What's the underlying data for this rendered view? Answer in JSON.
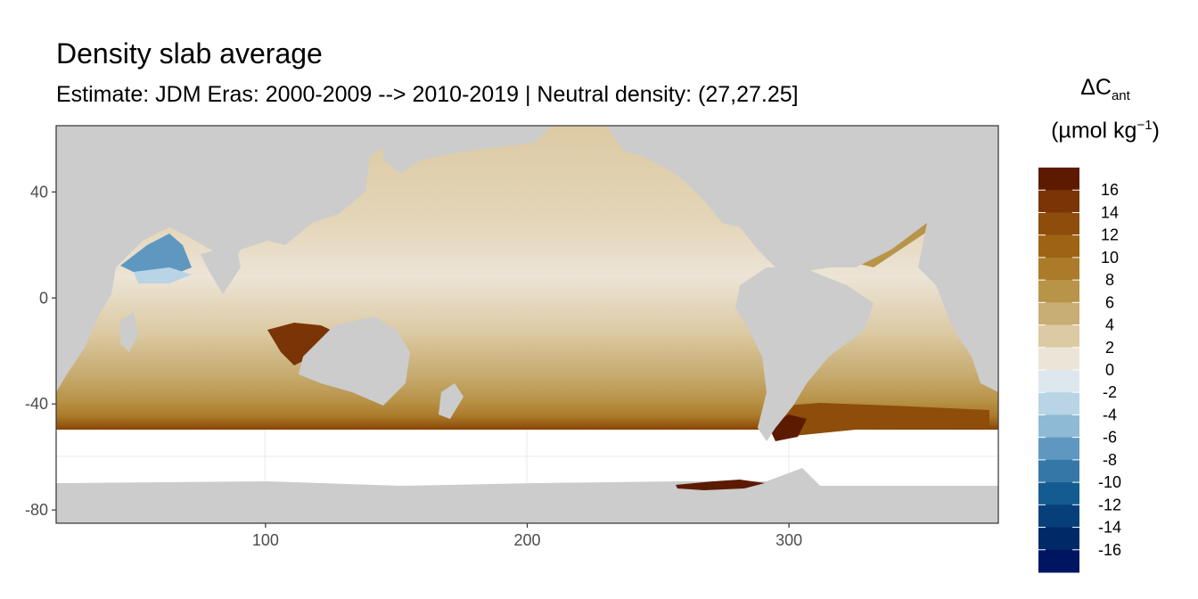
{
  "title": "Density slab average",
  "subtitle": "Estimate: JDM Eras: 2000-2009 --> 2010-2019 | Neutral density: (27,27.25]",
  "legend": {
    "title_main": "ΔC",
    "title_sub": "ant",
    "unit_prefix": "(µmol kg",
    "unit_sup": "−1",
    "unit_suffix": ")",
    "labels": [
      "16",
      "14",
      "12",
      "10",
      "8",
      "6",
      "4",
      "2",
      "0",
      "-2",
      "-4",
      "-6",
      "-8",
      "-10",
      "-12",
      "-14",
      "-16"
    ],
    "colors": [
      "#5c1a00",
      "#7a3405",
      "#8e4d0a",
      "#9e6414",
      "#ab7b2a",
      "#b89449",
      "#c8ad74",
      "#dccaa3",
      "#ece4d6",
      "#dde8ee",
      "#b9d4e4",
      "#8fbad5",
      "#5e98c1",
      "#3578a8",
      "#145b91",
      "#063f7a",
      "#002a67",
      "#001561"
    ]
  },
  "axes": {
    "x_ticks": [
      100,
      200,
      300
    ],
    "y_ticks": [
      40,
      0,
      -40,
      -80
    ],
    "xlim": [
      20,
      380
    ],
    "ylim": [
      -85,
      65
    ]
  },
  "chart_data": {
    "type": "heatmap",
    "title": "Density slab average",
    "subtitle": "Estimate: JDM Eras: 2000-2009 --> 2010-2019 | Neutral density: (27,27.25]",
    "xlabel": "",
    "ylabel": "",
    "xlim": [
      20,
      380
    ],
    "ylim": [
      -85,
      65
    ],
    "x_ticks": [
      100,
      200,
      300
    ],
    "y_ticks": [
      40,
      0,
      -40,
      -80
    ],
    "legend_title": "ΔCant (µmol kg−1)",
    "legend_position": "right",
    "color_breaks": [
      16,
      14,
      12,
      10,
      8,
      6,
      4,
      2,
      0,
      -2,
      -4,
      -6,
      -8,
      -10,
      -12,
      -14,
      -16
    ],
    "land_color": "#cccccc",
    "grid": true
  }
}
